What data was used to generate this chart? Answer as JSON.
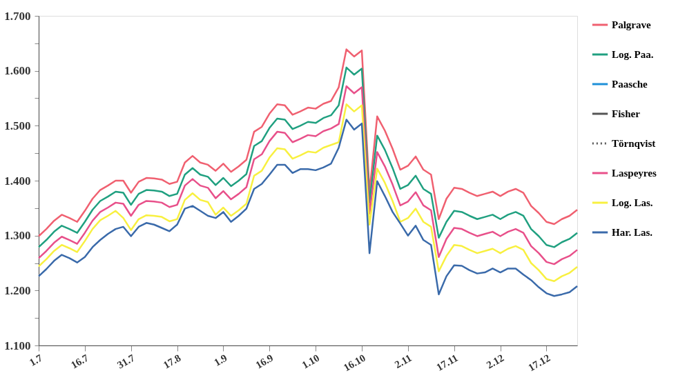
{
  "chart_data": {
    "type": "line",
    "categories": [
      "1.7",
      null,
      null,
      null,
      null,
      null,
      "16.7",
      null,
      null,
      null,
      null,
      null,
      "31.7",
      null,
      null,
      null,
      null,
      null,
      "17.8",
      null,
      null,
      null,
      null,
      null,
      "1.9",
      null,
      null,
      null,
      null,
      null,
      "16.9",
      null,
      null,
      null,
      null,
      null,
      "1.10",
      null,
      null,
      null,
      null,
      null,
      "16.10",
      null,
      null,
      null,
      null,
      null,
      "2.11",
      null,
      null,
      null,
      null,
      null,
      "17.11",
      null,
      null,
      null,
      null,
      null,
      "2.12",
      null,
      null,
      null,
      null,
      null,
      "17.12",
      null,
      null,
      null,
      null
    ],
    "series": [
      {
        "name": "Palgrave",
        "color": "#f06070",
        "values": [
          1.299,
          1.312,
          1.327,
          1.338,
          1.332,
          1.325,
          1.345,
          1.367,
          1.383,
          1.391,
          1.4,
          1.4,
          1.378,
          1.398,
          1.405,
          1.404,
          1.402,
          1.394,
          1.398,
          1.433,
          1.445,
          1.433,
          1.429,
          1.418,
          1.431,
          1.416,
          1.426,
          1.438,
          1.489,
          1.498,
          1.522,
          1.539,
          1.537,
          1.52,
          1.526,
          1.533,
          1.531,
          1.54,
          1.545,
          1.57,
          1.639,
          1.626,
          1.637,
          1.38,
          1.517,
          1.491,
          1.458,
          1.42,
          1.427,
          1.444,
          1.42,
          1.411,
          1.33,
          1.367,
          1.387,
          1.385,
          1.378,
          1.372,
          1.376,
          1.38,
          1.372,
          1.38,
          1.385,
          1.378,
          1.354,
          1.341,
          1.325,
          1.321,
          1.33,
          1.336,
          1.347
        ]
      },
      {
        "name": "Log. Paa.",
        "color": "#20a080",
        "values": [
          1.279,
          1.292,
          1.307,
          1.318,
          1.312,
          1.305,
          1.325,
          1.347,
          1.363,
          1.371,
          1.38,
          1.378,
          1.356,
          1.376,
          1.383,
          1.382,
          1.38,
          1.372,
          1.376,
          1.411,
          1.423,
          1.411,
          1.407,
          1.392,
          1.405,
          1.39,
          1.4,
          1.412,
          1.463,
          1.472,
          1.496,
          1.513,
          1.511,
          1.494,
          1.5,
          1.507,
          1.505,
          1.514,
          1.519,
          1.537,
          1.606,
          1.593,
          1.604,
          1.36,
          1.482,
          1.456,
          1.423,
          1.385,
          1.392,
          1.409,
          1.385,
          1.376,
          1.296,
          1.325,
          1.345,
          1.343,
          1.336,
          1.33,
          1.334,
          1.338,
          1.33,
          1.338,
          1.343,
          1.336,
          1.312,
          1.299,
          1.283,
          1.279,
          1.288,
          1.294,
          1.305
        ]
      },
      {
        "name": "Paasche",
        "color": "#1e90d8",
        "values": [
          null,
          null,
          null,
          null,
          null,
          null,
          null,
          null,
          null,
          null,
          null,
          null,
          null,
          null,
          null,
          null,
          null,
          null,
          null,
          null,
          null,
          null,
          null,
          null,
          null,
          null,
          null,
          null,
          null,
          null,
          null,
          null,
          null,
          null,
          null,
          null,
          null,
          null,
          null,
          null,
          null,
          null,
          null,
          null,
          null,
          null,
          null,
          null,
          null,
          null,
          null,
          null,
          null,
          null,
          null,
          null,
          null,
          null,
          null,
          null,
          null,
          null,
          null,
          null,
          null,
          null,
          null,
          null,
          null,
          null,
          null
        ]
      },
      {
        "name": "Fisher",
        "color": "#555555",
        "values": [
          null,
          null,
          null,
          null,
          null,
          null,
          null,
          null,
          null,
          null,
          null,
          null,
          null,
          null,
          null,
          null,
          null,
          null,
          null,
          null,
          null,
          null,
          null,
          null,
          null,
          null,
          null,
          null,
          null,
          null,
          null,
          null,
          null,
          null,
          null,
          null,
          null,
          null,
          null,
          null,
          null,
          null,
          null,
          null,
          null,
          null,
          null,
          null,
          null,
          null,
          null,
          null,
          null,
          null,
          null,
          null,
          null,
          null,
          null,
          null,
          null,
          null,
          null,
          null,
          null,
          null,
          null,
          null,
          null,
          null,
          null
        ]
      },
      {
        "name": "Törnqvist",
        "color": "#555555",
        "line_style": "dotted",
        "values": [
          null,
          null,
          null,
          null,
          null,
          null,
          null,
          null,
          null,
          null,
          null,
          null,
          null,
          null,
          null,
          null,
          null,
          null,
          null,
          null,
          null,
          null,
          null,
          null,
          null,
          null,
          null,
          null,
          null,
          null,
          null,
          null,
          null,
          null,
          null,
          null,
          null,
          null,
          null,
          null,
          null,
          null,
          null,
          null,
          null,
          null,
          null,
          null,
          null,
          null,
          null,
          null,
          null,
          null,
          null,
          null,
          null,
          null,
          null,
          null,
          null,
          null,
          null,
          null,
          null,
          null,
          null,
          null,
          null,
          null,
          null
        ]
      },
      {
        "name": "Laspeyres",
        "color": "#e8508a",
        "values": [
          1.259,
          1.272,
          1.287,
          1.298,
          1.292,
          1.285,
          1.305,
          1.327,
          1.343,
          1.351,
          1.36,
          1.358,
          1.336,
          1.356,
          1.363,
          1.362,
          1.36,
          1.352,
          1.356,
          1.391,
          1.403,
          1.391,
          1.387,
          1.368,
          1.381,
          1.366,
          1.376,
          1.388,
          1.439,
          1.448,
          1.472,
          1.489,
          1.487,
          1.47,
          1.476,
          1.483,
          1.481,
          1.49,
          1.495,
          1.503,
          1.572,
          1.559,
          1.57,
          1.34,
          1.452,
          1.426,
          1.393,
          1.355,
          1.362,
          1.379,
          1.355,
          1.346,
          1.261,
          1.294,
          1.314,
          1.312,
          1.305,
          1.299,
          1.303,
          1.307,
          1.299,
          1.307,
          1.312,
          1.305,
          1.281,
          1.268,
          1.252,
          1.248,
          1.257,
          1.263,
          1.274
        ]
      },
      {
        "name": "Log. Las.",
        "color": "#f8f040",
        "values": [
          1.244,
          1.257,
          1.272,
          1.283,
          1.277,
          1.27,
          1.29,
          1.312,
          1.328,
          1.336,
          1.345,
          1.332,
          1.31,
          1.33,
          1.337,
          1.336,
          1.334,
          1.326,
          1.33,
          1.365,
          1.377,
          1.365,
          1.361,
          1.338,
          1.351,
          1.336,
          1.346,
          1.358,
          1.409,
          1.418,
          1.442,
          1.459,
          1.457,
          1.44,
          1.446,
          1.453,
          1.451,
          1.46,
          1.465,
          1.47,
          1.539,
          1.526,
          1.537,
          1.32,
          1.422,
          1.396,
          1.363,
          1.325,
          1.332,
          1.349,
          1.325,
          1.316,
          1.235,
          1.263,
          1.283,
          1.281,
          1.274,
          1.268,
          1.272,
          1.276,
          1.268,
          1.276,
          1.281,
          1.274,
          1.25,
          1.237,
          1.221,
          1.217,
          1.226,
          1.232,
          1.243
        ]
      },
      {
        "name": "Har. Las.",
        "color": "#3a6aaa",
        "values": [
          1.226,
          1.239,
          1.254,
          1.265,
          1.259,
          1.251,
          1.261,
          1.279,
          1.292,
          1.303,
          1.312,
          1.316,
          1.299,
          1.316,
          1.323,
          1.32,
          1.314,
          1.308,
          1.32,
          1.349,
          1.354,
          1.345,
          1.336,
          1.332,
          1.343,
          1.325,
          1.336,
          1.349,
          1.385,
          1.394,
          1.411,
          1.429,
          1.429,
          1.414,
          1.421,
          1.421,
          1.419,
          1.424,
          1.431,
          1.46,
          1.511,
          1.493,
          1.504,
          1.268,
          1.399,
          1.372,
          1.343,
          1.322,
          1.3,
          1.318,
          1.292,
          1.283,
          1.193,
          1.226,
          1.246,
          1.245,
          1.237,
          1.231,
          1.233,
          1.24,
          1.233,
          1.24,
          1.24,
          1.229,
          1.219,
          1.206,
          1.195,
          1.19,
          1.193,
          1.197,
          1.208
        ]
      }
    ],
    "ylim": [
      1.1,
      1.7
    ],
    "yticks": [
      {
        "value": 1.1,
        "label": "1.100"
      },
      {
        "value": 1.15,
        "label": null
      },
      {
        "value": 1.2,
        "label": "1.200"
      },
      {
        "value": 1.25,
        "label": null
      },
      {
        "value": 1.3,
        "label": "1.300"
      },
      {
        "value": 1.35,
        "label": null
      },
      {
        "value": 1.4,
        "label": "1.400"
      },
      {
        "value": 1.45,
        "label": null
      },
      {
        "value": 1.5,
        "label": "1.500"
      },
      {
        "value": 1.55,
        "label": null
      },
      {
        "value": 1.6,
        "label": "1.600"
      },
      {
        "value": 1.65,
        "label": null
      },
      {
        "value": 1.7,
        "label": "1.700"
      }
    ],
    "grid": false,
    "legend": "right",
    "line_style": "solid",
    "marker": "none"
  }
}
